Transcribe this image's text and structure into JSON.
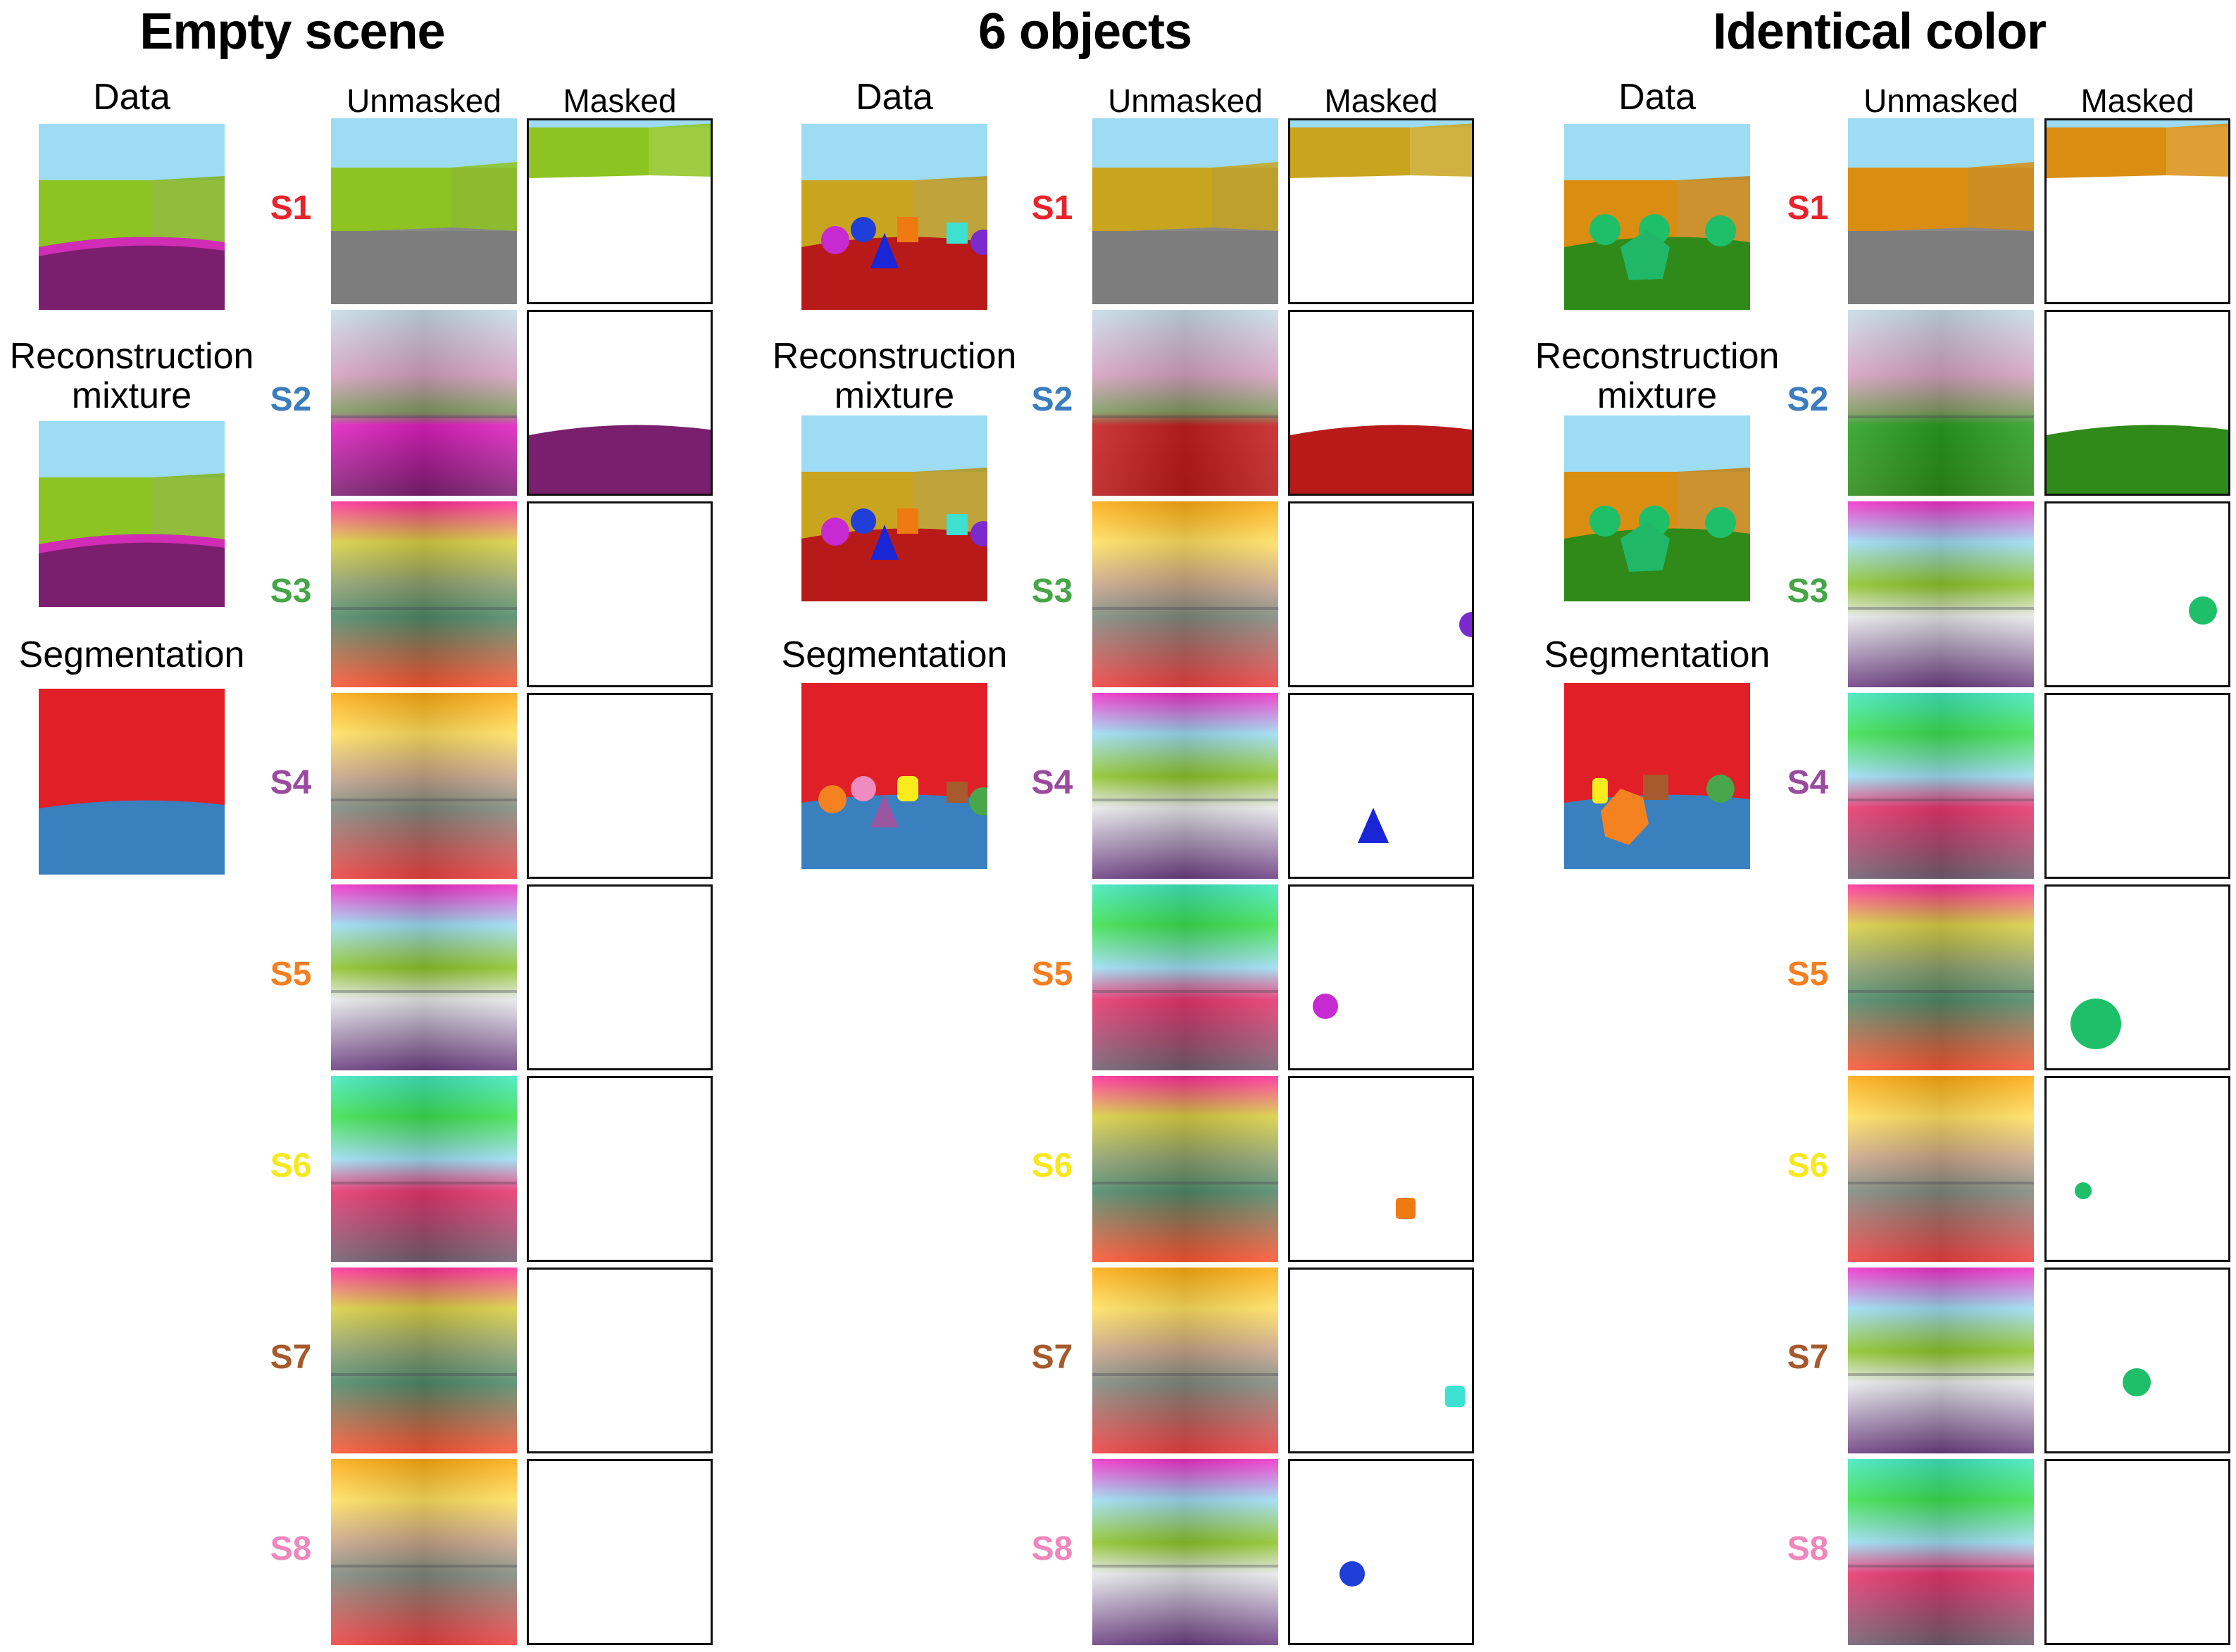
{
  "panels": [
    {
      "title": "Empty scene",
      "scene": "empty",
      "data_label": "Data",
      "recon_label_line1": "Reconstruction",
      "recon_label_line2": "mixture",
      "seg_label": "Segmentation",
      "unmasked_label": "Unmasked",
      "masked_label": "Masked",
      "wall_color": "#8ec421",
      "floor_color": "#7a1f6e",
      "slots": [
        {
          "label": "S1",
          "color": "#e8232a"
        },
        {
          "label": "S2",
          "color": "#3b7dbf"
        },
        {
          "label": "S3",
          "color": "#46a546"
        },
        {
          "label": "S4",
          "color": "#9a4b9e"
        },
        {
          "label": "S5",
          "color": "#f57f20"
        },
        {
          "label": "S6",
          "color": "#f7e81c"
        },
        {
          "label": "S7",
          "color": "#a65a2c"
        },
        {
          "label": "S8",
          "color": "#ef86bd"
        }
      ]
    },
    {
      "title": "6 objects",
      "scene": "objects",
      "data_label": "Data",
      "recon_label_line1": "Reconstruction",
      "recon_label_line2": "mixture",
      "seg_label": "Segmentation",
      "unmasked_label": "Unmasked",
      "masked_label": "Masked",
      "wall_color": "#c9a41e",
      "floor_color": "#b81a1a",
      "slots": [
        {
          "label": "S1",
          "color": "#e8232a"
        },
        {
          "label": "S2",
          "color": "#3b7dbf"
        },
        {
          "label": "S3",
          "color": "#46a546"
        },
        {
          "label": "S4",
          "color": "#9a4b9e"
        },
        {
          "label": "S5",
          "color": "#f57f20"
        },
        {
          "label": "S6",
          "color": "#f7e81c"
        },
        {
          "label": "S7",
          "color": "#a65a2c"
        },
        {
          "label": "S8",
          "color": "#ef86bd"
        }
      ]
    },
    {
      "title": "Identical color",
      "scene": "identical",
      "data_label": "Data",
      "recon_label_line1": "Reconstruction",
      "recon_label_line2": "mixture",
      "seg_label": "Segmentation",
      "unmasked_label": "Unmasked",
      "masked_label": "Masked",
      "wall_color": "#d98e12",
      "floor_color": "#2f8a1a",
      "slots": [
        {
          "label": "S1",
          "color": "#e8232a"
        },
        {
          "label": "S2",
          "color": "#3b7dbf"
        },
        {
          "label": "S3",
          "color": "#46a546"
        },
        {
          "label": "S4",
          "color": "#9a4b9e"
        },
        {
          "label": "S5",
          "color": "#f57f20"
        },
        {
          "label": "S6",
          "color": "#f7e81c"
        },
        {
          "label": "S7",
          "color": "#a65a2c"
        },
        {
          "label": "S8",
          "color": "#ef86bd"
        }
      ]
    }
  ],
  "seg_colors": {
    "background": "#e01f26",
    "floor": "#3a7fbe",
    "objects": [
      "#f58220",
      "#f08bbf",
      "#f9ec1d",
      "#9a55a0",
      "#a65a2e",
      "#4aa64a"
    ]
  }
}
